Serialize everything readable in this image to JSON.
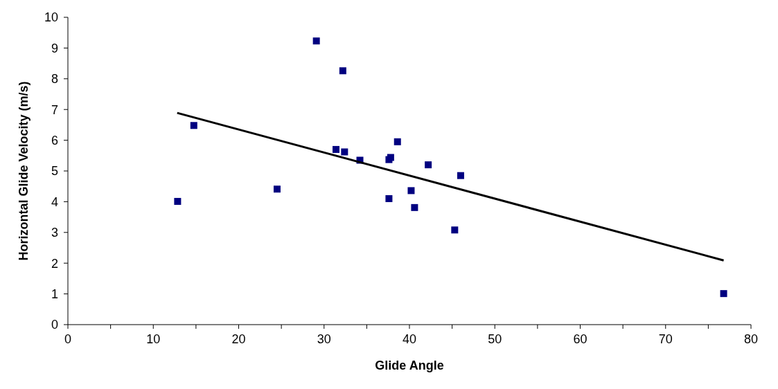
{
  "chart_data": {
    "type": "scatter",
    "xlabel": "Glide Angle",
    "ylabel": "Horizontal Glide Velocity (m/s)",
    "xlim": [
      0,
      80
    ],
    "ylim": [
      0,
      10
    ],
    "xticks": [
      0,
      {
        "value": 5,
        "label": null
      },
      10,
      {
        "value": 15,
        "label": null
      },
      20,
      {
        "value": 25,
        "label": null
      },
      30,
      {
        "value": 35,
        "label": null
      },
      40,
      {
        "value": 45,
        "label": null
      },
      50,
      {
        "value": 55,
        "label": null
      },
      60,
      {
        "value": 65,
        "label": null
      },
      70,
      {
        "value": 75,
        "label": null
      },
      80
    ],
    "yticks": [
      0,
      1,
      2,
      3,
      4,
      5,
      6,
      7,
      8,
      9,
      10
    ],
    "grid": false,
    "series": [
      {
        "color": "#000080",
        "marker": "square",
        "x": [
          12.85,
          14.75,
          24.5,
          29.1,
          31.4,
          32.2,
          32.4,
          34.2,
          37.6,
          37.8,
          37.6,
          38.6,
          40.2,
          40.6,
          42.2,
          45.3,
          46.0,
          76.8
        ],
        "values": [
          4.01,
          6.48,
          4.41,
          9.23,
          5.7,
          8.26,
          5.62,
          5.35,
          5.37,
          5.44,
          4.1,
          5.95,
          4.36,
          3.81,
          5.2,
          3.08,
          4.85,
          1.01
        ]
      },
      {
        "type": "line",
        "color": "#000000",
        "marker": "none",
        "x": [
          12.8,
          76.8
        ],
        "values": [
          6.89,
          2.09
        ]
      }
    ]
  }
}
